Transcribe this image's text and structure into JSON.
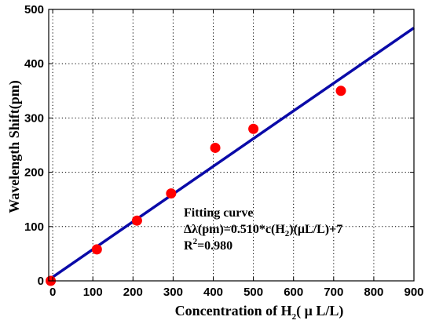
{
  "chart_data": {
    "type": "scatter",
    "xlabel_main": "Concentration of H",
    "xlabel_sub": "2",
    "xlabel_unit": "( μ L/L)",
    "ylabel": "Wavelength Shift(pm)",
    "xlim": [
      -10,
      900
    ],
    "ylim": [
      0,
      500
    ],
    "x_ticks": [
      0,
      100,
      200,
      300,
      400,
      500,
      600,
      700,
      800,
      900
    ],
    "y_ticks": [
      0,
      100,
      200,
      300,
      400,
      500
    ],
    "grid": true,
    "grid_style": "dotted",
    "series": [
      {
        "kind": "points",
        "color": "#ff0000",
        "x": [
          -5,
          110,
          210,
          295,
          405,
          500,
          718
        ],
        "y": [
          0,
          58,
          111,
          161,
          245,
          280,
          350
        ]
      },
      {
        "kind": "fit-line",
        "color": "#0a0aa8",
        "slope": 0.51,
        "intercept": 7,
        "x": [
          -10,
          900
        ]
      }
    ],
    "annotation": {
      "line1": "Fitting curve",
      "line2_prefix": "Δλ(pm)=0.510*c(H",
      "line2_sub": "2",
      "line2_suffix": ")(μL/L)+7",
      "line3_prefix": "R",
      "line3_sup": "2",
      "line3_suffix": "=0.980"
    }
  }
}
